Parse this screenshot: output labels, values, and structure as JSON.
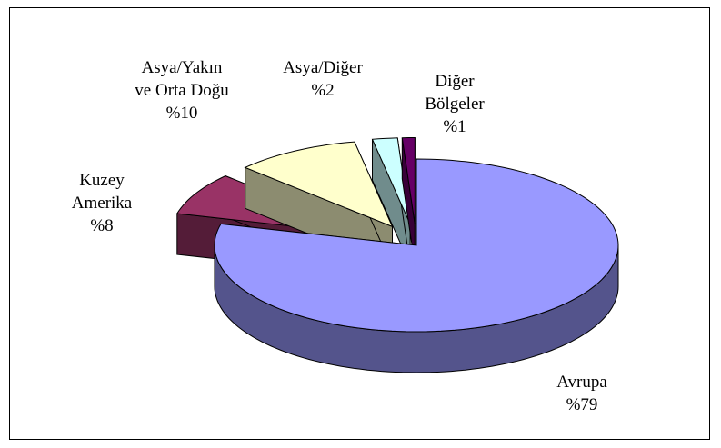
{
  "chart_data": {
    "type": "pie3d",
    "categories": [
      "Avrupa",
      "Kuzey\nAmerika",
      "Asya/Yakın\nve Orta Doğu",
      "Asya/Diğer",
      "Diğer\nBölgeler"
    ],
    "values": [
      79,
      8,
      10,
      2,
      1
    ],
    "value_labels": [
      "%79",
      "%8",
      "%10",
      "%2",
      "%1"
    ],
    "colors": [
      "#9999ff",
      "#993366",
      "#ffffcc",
      "#ccffff",
      "#660066"
    ]
  }
}
